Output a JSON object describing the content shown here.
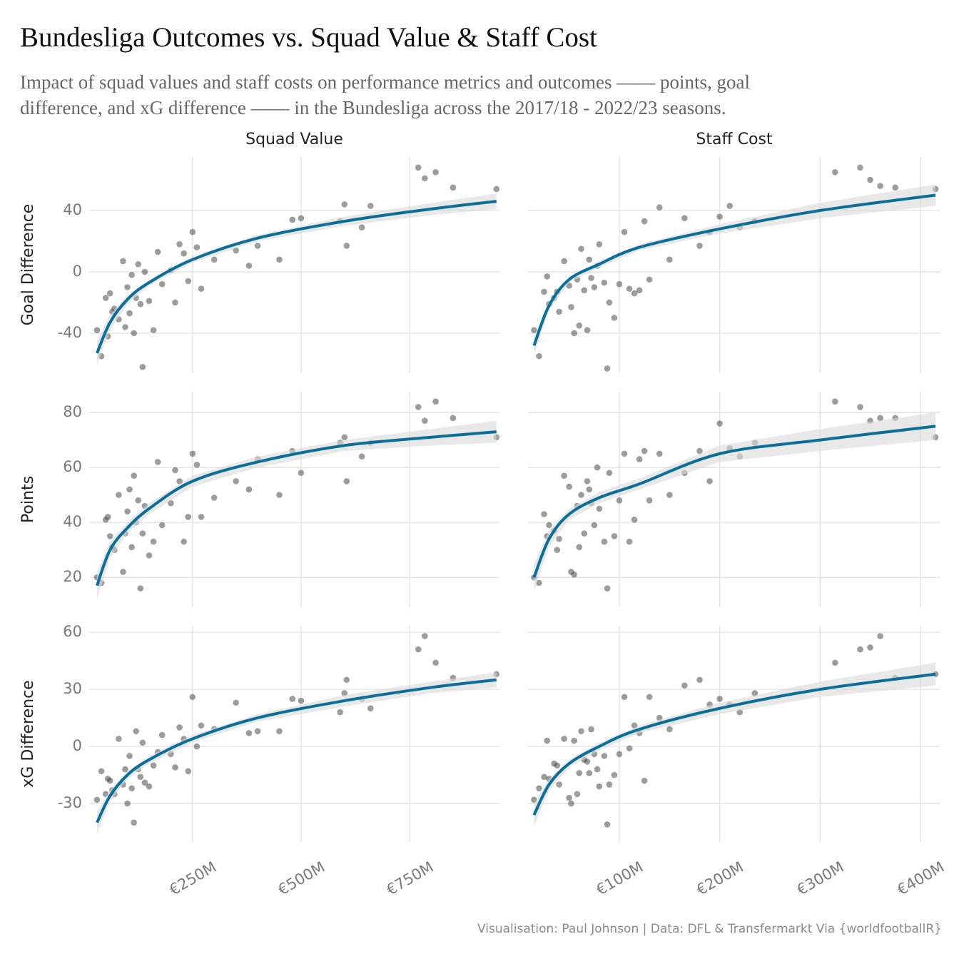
{
  "title": "Bundesliga Outcomes vs. Squad Value & Staff Cost",
  "subtitle": [
    "Impact of squad values and staff costs on performance metrics and outcomes —— points, goal",
    "difference, and xG difference —— in the Bundesliga across the 2017/18 - 2022/23 seasons."
  ],
  "caption": "Visualisation: Paul Johnson | Data: DFL & Transfermarkt Via {worldfootballR}",
  "facets": {
    "columns": [
      "Squad Value",
      "Staff Cost"
    ],
    "rows": [
      "Goal Difference",
      "Points",
      "xG Difference"
    ]
  },
  "chart_data": [
    {
      "type": "scatter",
      "color": "#3a3a3a",
      "grid": true,
      "x": [
        30,
        40,
        50,
        55,
        60,
        65,
        70,
        80,
        90,
        95,
        100,
        105,
        110,
        115,
        120,
        125,
        130,
        135,
        140,
        150,
        160,
        170,
        180,
        200,
        210,
        220,
        230,
        240,
        250,
        260,
        270,
        300,
        350,
        380,
        400,
        450,
        480,
        500,
        590,
        600,
        605,
        640,
        660,
        770,
        785,
        810,
        850,
        950
      ],
      "values": [
        -38,
        -55,
        -17,
        -42,
        -14,
        -26,
        -24,
        -31,
        7,
        -36,
        -10,
        -27,
        -2,
        -40,
        -17,
        5,
        -21,
        -62,
        0,
        -19,
        -38,
        13,
        -8,
        1,
        -20,
        18,
        12,
        -6,
        26,
        16,
        -11,
        8,
        14,
        4,
        17,
        8,
        34,
        35,
        33,
        44,
        17,
        29,
        43,
        68,
        61,
        65,
        55,
        54
      ],
      "fit": {
        "color": "#0b6e99",
        "x": [
          30,
          60,
          100,
          150,
          250,
          400,
          600,
          800,
          950
        ],
        "values": [
          -53,
          -33,
          -18,
          -7,
          8,
          22,
          33,
          41,
          46
        ],
        "lower": [
          -61,
          -38,
          -21,
          -9,
          6,
          20,
          30,
          37,
          41
        ],
        "upper": [
          -45,
          -28,
          -15,
          -5,
          10,
          24,
          36,
          45,
          51
        ]
      },
      "xlim": [
        12,
        957
      ],
      "ylim": [
        -65.6,
        74.9
      ],
      "xticks": [
        {
          "value": 250,
          "label": "€250M"
        },
        {
          "value": 500,
          "label": "€500M"
        },
        {
          "value": 750,
          "label": "€750M"
        }
      ],
      "yticks": [
        -40,
        0,
        40
      ]
    },
    {
      "type": "scatter",
      "color": "#3a3a3a",
      "grid": true,
      "x": [
        15,
        20,
        25,
        28,
        30,
        35,
        38,
        40,
        45,
        50,
        52,
        55,
        58,
        60,
        62,
        65,
        68,
        70,
        72,
        75,
        78,
        80,
        85,
        88,
        90,
        95,
        100,
        105,
        110,
        115,
        120,
        125,
        130,
        140,
        150,
        165,
        180,
        190,
        200,
        210,
        220,
        235,
        315,
        340,
        350,
        360,
        375,
        415
      ],
      "values": [
        -38,
        -55,
        -13,
        -3,
        -21,
        -17,
        -13,
        -26,
        7,
        -9,
        -23,
        -40,
        -5,
        -35,
        15,
        -12,
        -38,
        8,
        -4,
        -10,
        4,
        18,
        -7,
        -63,
        -20,
        -30,
        -8,
        26,
        -11,
        -14,
        -12,
        33,
        -5,
        42,
        8,
        35,
        17,
        26,
        36,
        43,
        29,
        33,
        65,
        68,
        60,
        56,
        55,
        54
      ],
      "fit": {
        "color": "#0b6e99",
        "x": [
          15,
          30,
          50,
          80,
          120,
          200,
          300,
          415
        ],
        "values": [
          -48,
          -22,
          -5,
          5,
          16,
          28,
          40,
          50
        ],
        "lower": [
          -54,
          -25,
          -7,
          3,
          14,
          25,
          35,
          43
        ],
        "upper": [
          -42,
          -19,
          -3,
          7,
          18,
          31,
          45,
          57
        ]
      },
      "xlim": [
        9,
        420
      ],
      "ylim": [
        -65.6,
        74.9
      ],
      "xticks": [
        {
          "value": 100,
          "label": "€100M"
        },
        {
          "value": 200,
          "label": "€200M"
        },
        {
          "value": 300,
          "label": "€300M"
        },
        {
          "value": 400,
          "label": "€400M"
        }
      ],
      "yticks": [
        -40,
        0,
        40
      ]
    },
    {
      "type": "scatter",
      "color": "#3a3a3a",
      "grid": true,
      "x": [
        30,
        40,
        50,
        55,
        60,
        65,
        70,
        80,
        90,
        95,
        100,
        105,
        110,
        115,
        120,
        125,
        130,
        135,
        140,
        150,
        160,
        170,
        180,
        200,
        210,
        220,
        230,
        240,
        250,
        260,
        270,
        300,
        350,
        380,
        400,
        450,
        480,
        500,
        590,
        600,
        605,
        640,
        660,
        770,
        785,
        810,
        850,
        950
      ],
      "values": [
        20,
        18,
        41,
        42,
        35,
        31,
        30,
        50,
        22,
        36,
        44,
        52,
        31,
        57,
        40,
        48,
        16,
        36,
        46,
        28,
        33,
        62,
        39,
        47,
        59,
        55,
        33,
        42,
        65,
        61,
        42,
        49,
        55,
        52,
        63,
        50,
        66,
        58,
        69,
        71,
        55,
        64,
        69,
        82,
        77,
        84,
        78,
        71
      ],
      "fit": {
        "color": "#0b6e99",
        "x": [
          30,
          60,
          100,
          150,
          250,
          400,
          600,
          800,
          950
        ],
        "values": [
          17,
          30,
          38,
          45,
          55,
          62,
          68,
          71,
          73
        ],
        "lower": [
          12,
          27,
          36,
          43,
          53,
          60,
          66,
          68,
          69
        ],
        "upper": [
          22,
          33,
          40,
          47,
          57,
          64,
          70,
          74,
          77
        ]
      },
      "xlim": [
        12,
        957
      ],
      "ylim": [
        9.4,
        87.3
      ],
      "xticks": [
        {
          "value": 250,
          "label": "€250M"
        },
        {
          "value": 500,
          "label": "€500M"
        },
        {
          "value": 750,
          "label": "€750M"
        }
      ],
      "yticks": [
        20,
        40,
        60,
        80
      ]
    },
    {
      "type": "scatter",
      "color": "#3a3a3a",
      "grid": true,
      "x": [
        15,
        20,
        25,
        28,
        30,
        35,
        38,
        40,
        45,
        50,
        52,
        55,
        58,
        60,
        62,
        65,
        68,
        70,
        72,
        75,
        78,
        80,
        85,
        88,
        90,
        95,
        100,
        105,
        110,
        115,
        120,
        125,
        130,
        140,
        150,
        165,
        180,
        190,
        200,
        210,
        220,
        235,
        315,
        340,
        350,
        360,
        375,
        415
      ],
      "values": [
        20,
        18,
        43,
        35,
        39,
        37,
        30,
        34,
        57,
        53,
        22,
        21,
        46,
        31,
        50,
        36,
        55,
        52,
        47,
        39,
        60,
        45,
        33,
        16,
        58,
        35,
        48,
        65,
        33,
        41,
        63,
        66,
        48,
        65,
        50,
        58,
        66,
        55,
        76,
        67,
        64,
        69,
        84,
        82,
        77,
        78,
        78,
        71
      ],
      "fit": {
        "color": "#0b6e99",
        "x": [
          15,
          30,
          50,
          80,
          120,
          200,
          300,
          415
        ],
        "values": [
          20,
          34,
          43,
          49,
          54,
          65,
          70,
          75
        ],
        "lower": [
          15,
          31,
          41,
          47,
          52,
          62,
          66,
          70
        ],
        "upper": [
          25,
          37,
          45,
          51,
          56,
          68,
          74,
          80
        ]
      },
      "xlim": [
        9,
        420
      ],
      "ylim": [
        9.4,
        87.3
      ],
      "xticks": [
        {
          "value": 100,
          "label": "€100M"
        },
        {
          "value": 200,
          "label": "€200M"
        },
        {
          "value": 300,
          "label": "€300M"
        },
        {
          "value": 400,
          "label": "€400M"
        }
      ],
      "yticks": [
        20,
        40,
        60,
        80
      ]
    },
    {
      "type": "scatter",
      "color": "#3a3a3a",
      "grid": true,
      "x": [
        30,
        40,
        50,
        55,
        60,
        65,
        70,
        80,
        90,
        95,
        100,
        105,
        110,
        115,
        120,
        125,
        130,
        135,
        140,
        150,
        160,
        170,
        180,
        200,
        210,
        220,
        230,
        240,
        250,
        260,
        270,
        300,
        350,
        380,
        400,
        450,
        480,
        500,
        590,
        600,
        605,
        640,
        660,
        770,
        785,
        810,
        850,
        950
      ],
      "values": [
        -28,
        -13,
        -25,
        -17,
        -18,
        -23,
        -25,
        4,
        -20,
        -12,
        -30,
        -5,
        -22,
        -40,
        8,
        -12,
        -16,
        2,
        -19,
        -21,
        -10,
        -3,
        6,
        -4,
        -11,
        10,
        4,
        -13,
        26,
        0,
        11,
        9,
        23,
        7,
        8,
        8,
        25,
        24,
        18,
        28,
        35,
        25,
        20,
        51,
        58,
        44,
        36,
        38
      ],
      "fit": {
        "color": "#0b6e99",
        "x": [
          30,
          60,
          100,
          150,
          250,
          400,
          600,
          800,
          950
        ],
        "values": [
          -40,
          -26,
          -15,
          -7,
          4,
          15,
          24,
          31,
          35
        ],
        "lower": [
          -46,
          -29,
          -17,
          -9,
          2,
          13,
          21,
          28,
          31
        ],
        "upper": [
          -34,
          -23,
          -13,
          -5,
          6,
          17,
          27,
          34,
          39
        ]
      },
      "xlim": [
        12,
        957
      ],
      "ylim": [
        -50.2,
        63.4
      ],
      "xticks": [
        {
          "value": 250,
          "label": "€250M"
        },
        {
          "value": 500,
          "label": "€500M"
        },
        {
          "value": 750,
          "label": "€750M"
        }
      ],
      "yticks": [
        -30,
        0,
        30,
        60
      ]
    },
    {
      "type": "scatter",
      "color": "#3a3a3a",
      "grid": true,
      "x": [
        15,
        20,
        25,
        28,
        30,
        35,
        38,
        40,
        45,
        50,
        52,
        55,
        58,
        60,
        62,
        65,
        68,
        70,
        72,
        75,
        78,
        80,
        85,
        88,
        90,
        95,
        100,
        105,
        110,
        115,
        120,
        125,
        130,
        140,
        150,
        165,
        180,
        190,
        200,
        210,
        220,
        235,
        315,
        340,
        350,
        360,
        375,
        415
      ],
      "values": [
        -28,
        -22,
        -16,
        3,
        -17,
        -9,
        -10,
        -20,
        4,
        -27,
        -30,
        3,
        -25,
        -14,
        8,
        -7,
        -8,
        -14,
        9,
        -4,
        -12,
        -21,
        -5,
        -41,
        -20,
        -15,
        -4,
        26,
        -1,
        11,
        7,
        -18,
        26,
        15,
        9,
        32,
        35,
        22,
        25,
        22,
        18,
        28,
        44,
        51,
        52,
        58,
        36,
        38
      ],
      "fit": {
        "color": "#0b6e99",
        "x": [
          15,
          30,
          50,
          80,
          120,
          200,
          300,
          415
        ],
        "values": [
          -36,
          -20,
          -9,
          0,
          9,
          20,
          30,
          38
        ],
        "lower": [
          -42,
          -23,
          -11,
          -2,
          7,
          17,
          26,
          32
        ],
        "upper": [
          -30,
          -17,
          -7,
          2,
          11,
          23,
          34,
          44
        ]
      },
      "xlim": [
        9,
        420
      ],
      "ylim": [
        -50.2,
        63.4
      ],
      "xticks": [
        {
          "value": 100,
          "label": "€100M"
        },
        {
          "value": 200,
          "label": "€200M"
        },
        {
          "value": 300,
          "label": "€300M"
        },
        {
          "value": 400,
          "label": "€400M"
        }
      ],
      "yticks": [
        -30,
        0,
        30,
        60
      ]
    }
  ]
}
